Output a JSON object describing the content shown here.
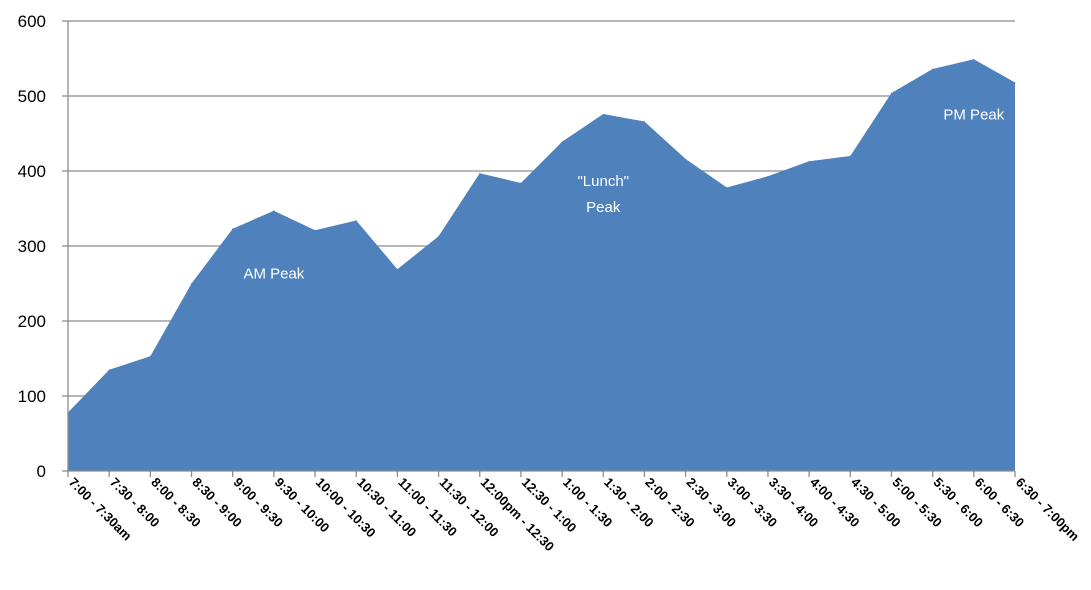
{
  "colors": {
    "area_fill": "#4f81bd",
    "gridline": "#8c8c8c",
    "axis": "#8c8c8c",
    "annotation_text": "#ffffff"
  },
  "chart_data": {
    "type": "area",
    "title": "",
    "xlabel": "",
    "ylabel": "",
    "ylim": [
      0,
      600
    ],
    "yticks": [
      0,
      100,
      200,
      300,
      400,
      500,
      600
    ],
    "grid": true,
    "legend": "none",
    "categories": [
      "7:00 - 7:30am",
      "7:30 - 8:00",
      "8:00 - 8:30",
      "8:30 - 9:00",
      "9:00 - 9:30",
      "9:30 - 10:00",
      "10:00 - 10:30",
      "10:30 - 11:00",
      "11:00 - 11:30",
      "11:30 - 12:00",
      "12:00pm - 12:30",
      "12:30 - 1:00",
      "1:00 - 1:30",
      "1:30 - 2:00",
      "2:00 - 2:30",
      "2:30 - 3:00",
      "3:00 - 3:30",
      "3:30 - 4:00",
      "4:00 - 4:30",
      "4:30 - 5:00",
      "5:00 - 5:30",
      "5:30 - 6:00",
      "6:00 - 6:30",
      "6:30 - 7:00pm"
    ],
    "values": [
      78,
      135,
      153,
      250,
      323,
      347,
      321,
      334,
      269,
      313,
      397,
      384,
      439,
      476,
      466,
      416,
      378,
      393,
      413,
      420,
      504,
      536,
      549,
      518
    ],
    "annotations": [
      {
        "lines": [
          "AM Peak"
        ],
        "category": "9:30 - 10:00",
        "value": 257
      },
      {
        "lines": [
          "\"Lunch\"",
          "Peak"
        ],
        "category": "1:30 - 2:00",
        "value": 380
      },
      {
        "lines": [
          "PM Peak"
        ],
        "category": "6:00 - 6:30",
        "value": 469
      }
    ]
  }
}
